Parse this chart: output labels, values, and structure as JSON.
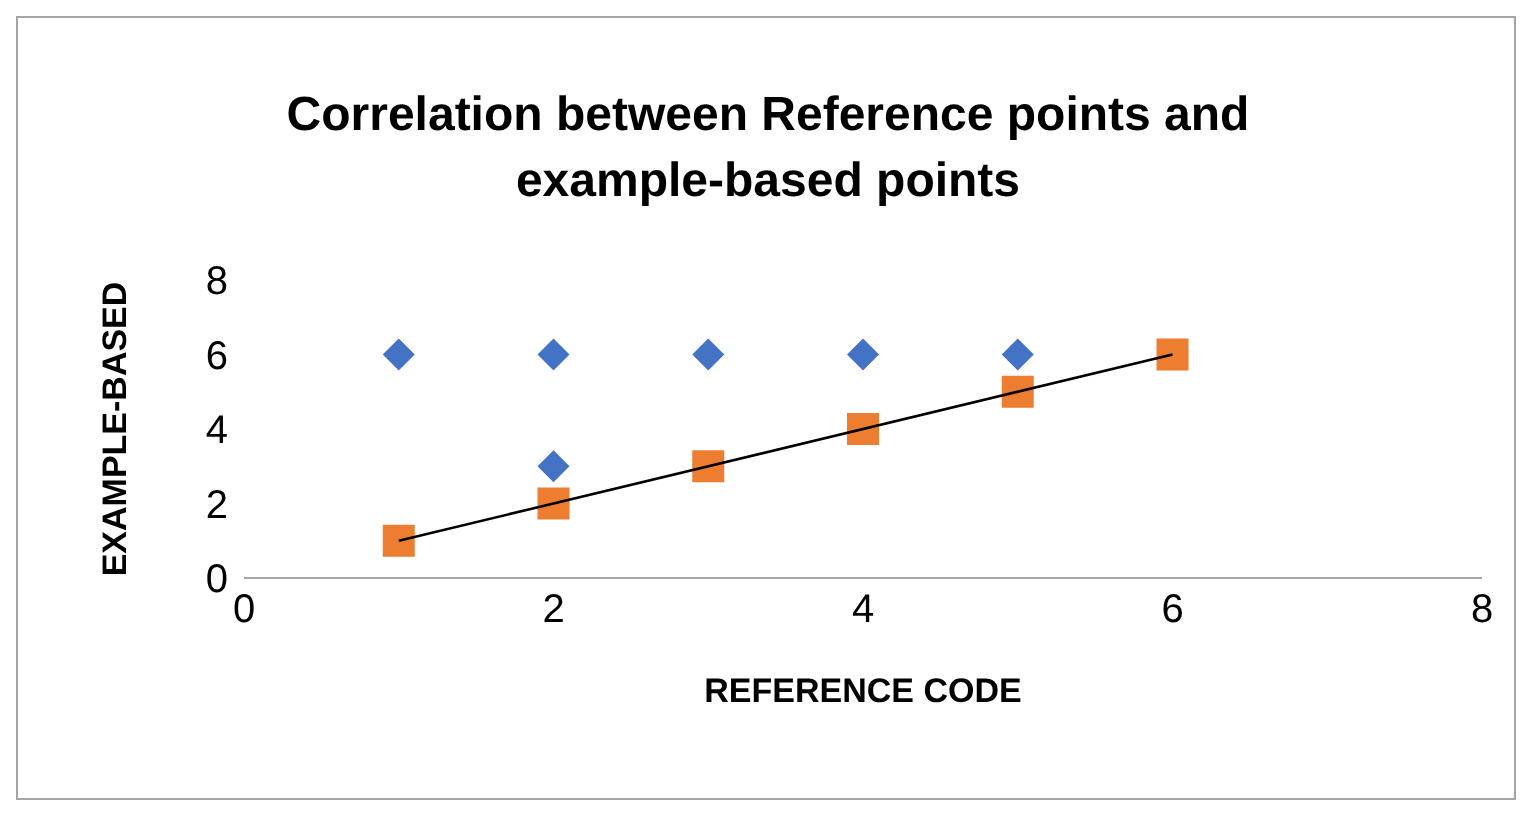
{
  "chart_data": {
    "type": "scatter",
    "title": "Correlation between Reference points and example-based points",
    "xlabel": "REFERENCE CODE",
    "ylabel": "EXAMPLE-BASED",
    "xlim": [
      0,
      8
    ],
    "xticks": [
      0,
      2,
      4,
      6,
      8
    ],
    "ylim": [
      0,
      8
    ],
    "yticks": [
      0,
      2,
      4,
      6,
      8
    ],
    "grid": false,
    "series": [
      {
        "color": "#4472c4",
        "marker": "diamond",
        "x": [
          1,
          2,
          3,
          4,
          5,
          2
        ],
        "values": [
          6,
          6,
          6,
          6,
          6,
          3
        ]
      },
      {
        "color": "#ed7d31",
        "marker": "square",
        "x": [
          1,
          2,
          3,
          4,
          5,
          6
        ],
        "values": [
          1,
          2,
          3,
          4,
          5,
          6
        ]
      },
      {
        "type": "line",
        "color": "#000000",
        "marker": "none",
        "x": [
          1,
          6
        ],
        "values": [
          1,
          6
        ]
      }
    ]
  }
}
